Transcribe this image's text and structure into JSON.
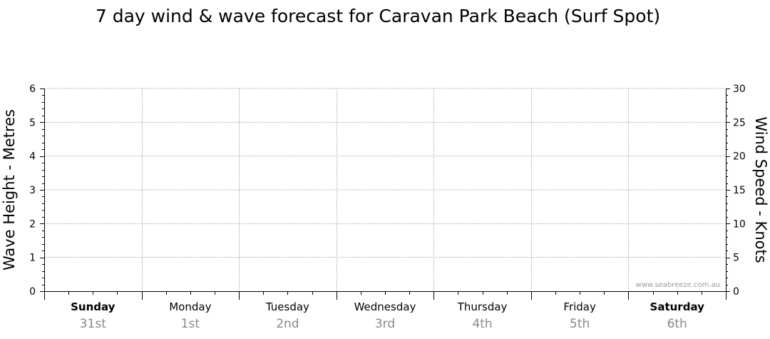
{
  "chart_data": {
    "type": "line",
    "title": "7 day wind & wave forecast for Caravan Park Beach (Surf Spot)",
    "y_left": {
      "label": "Wave Height - Metres",
      "range": [
        0,
        6
      ],
      "ticks": [
        "0",
        "1",
        "2",
        "3",
        "4",
        "5",
        "6"
      ]
    },
    "y_right": {
      "label": "Wind Speed - Knots",
      "range": [
        0,
        30
      ],
      "ticks": [
        "0",
        "5",
        "10",
        "15",
        "20",
        "25",
        "30"
      ]
    },
    "days": [
      {
        "name": "Sunday",
        "date": "31st",
        "weekend": true
      },
      {
        "name": "Monday",
        "date": "1st",
        "weekend": false
      },
      {
        "name": "Tuesday",
        "date": "2nd",
        "weekend": false
      },
      {
        "name": "Wednesday",
        "date": "3rd",
        "weekend": false
      },
      {
        "name": "Thursday",
        "date": "4th",
        "weekend": false
      },
      {
        "name": "Friday",
        "date": "5th",
        "weekend": false
      },
      {
        "name": "Saturday",
        "date": "6th",
        "weekend": true
      }
    ],
    "series": [],
    "grid": true,
    "watermark": "www.seabreeze.com.au"
  },
  "colors": {
    "grid": "#aaaaaa",
    "axis": "#000000",
    "date_text": "#888888"
  }
}
